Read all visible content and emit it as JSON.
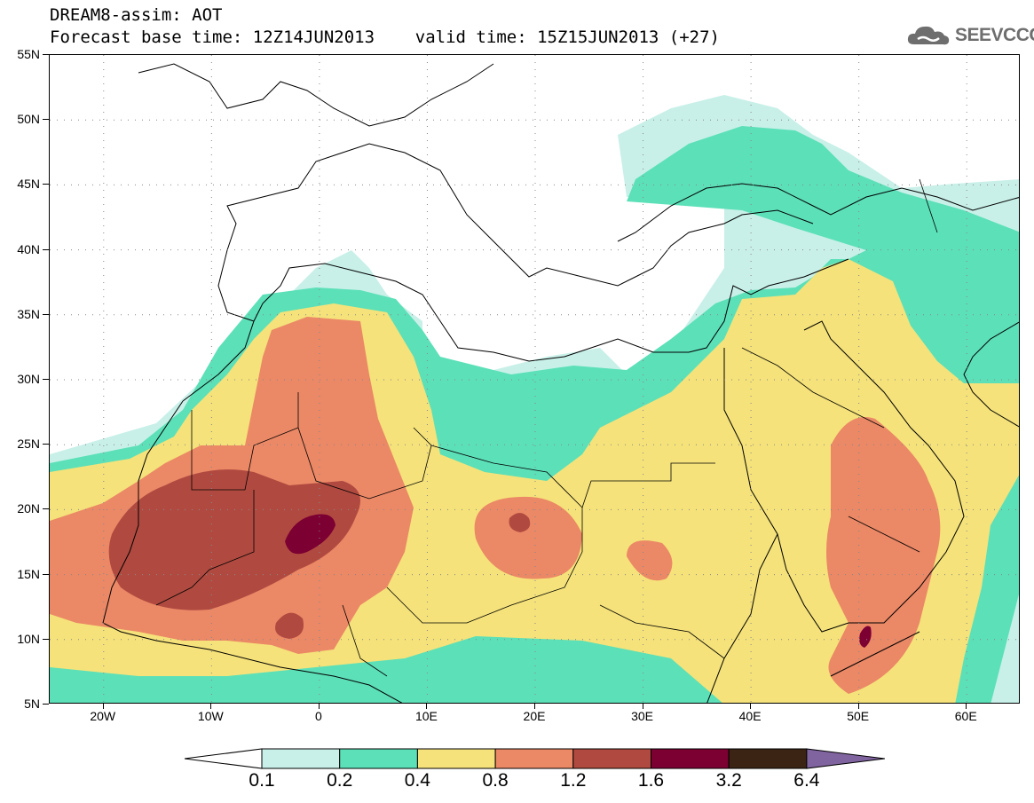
{
  "title": {
    "line1": "DREAM8-assim: AOT",
    "line2": "Forecast base time: 12Z14JUN2013    valid time: 15Z15JUN2013 (+27)"
  },
  "logo": {
    "text": "SEEVCCC",
    "icon": "cloud-icon",
    "color": "#6e6e6e"
  },
  "map": {
    "lat_labels": [
      "55N",
      "50N",
      "45N",
      "40N",
      "35N",
      "30N",
      "25N",
      "20N",
      "15N",
      "10N",
      "5N"
    ],
    "lon_labels": [
      "20W",
      "10W",
      "0",
      "10E",
      "20E",
      "30E",
      "40E",
      "50E",
      "60E"
    ],
    "lat_range": [
      5,
      55
    ],
    "lon_range": [
      -25,
      65
    ],
    "coastline_color": "#000000"
  },
  "colorbar": {
    "labels": [
      "0.1",
      "0.2",
      "0.4",
      "0.8",
      "1.2",
      "1.6",
      "3.2",
      "6.4"
    ],
    "colors": [
      "#ffffff",
      "#c8f0e8",
      "#5ce0b8",
      "#f5e27a",
      "#eb8866",
      "#b04a40",
      "#7c0032",
      "#3c2414",
      "#8064a0"
    ]
  }
}
